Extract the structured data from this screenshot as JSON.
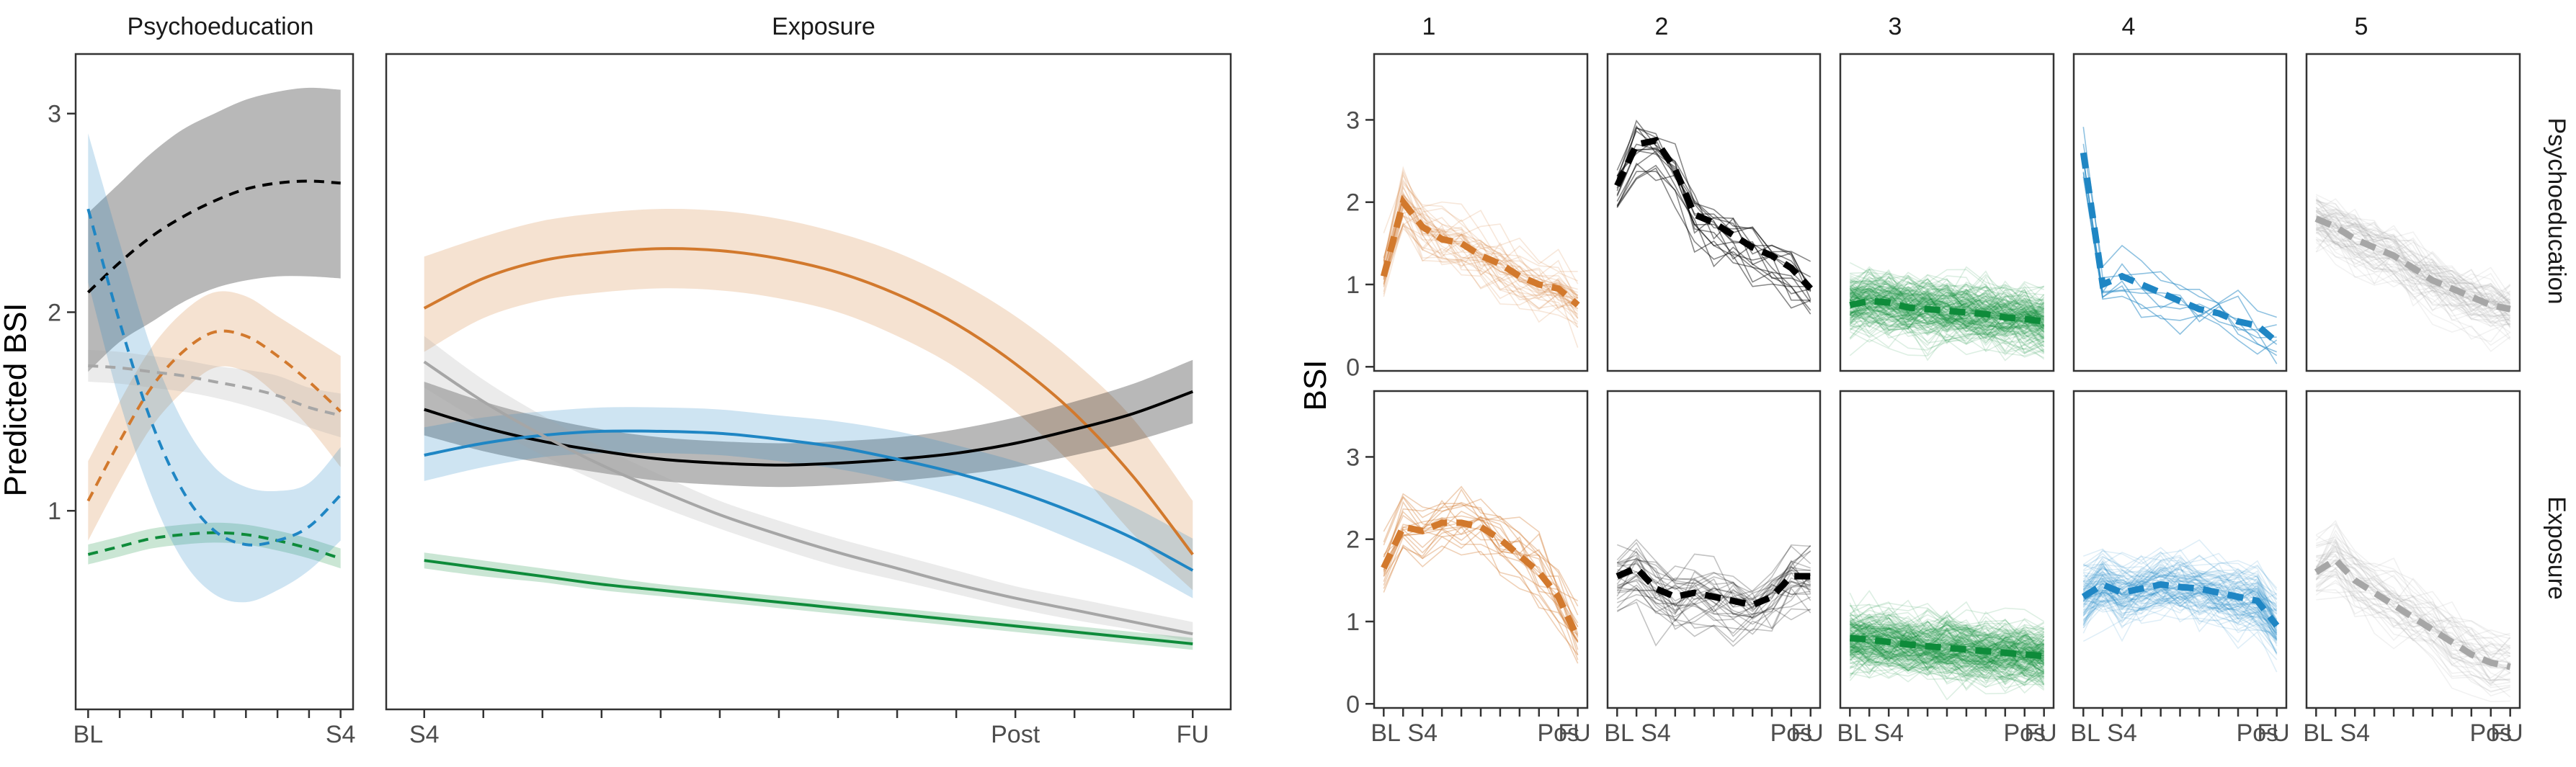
{
  "colors": {
    "class1": "#D2792D",
    "class2": "#000000",
    "class3": "#0E8B3A",
    "class4": "#1F86C4",
    "class5": "#A6A6A6"
  },
  "chart_data": [
    {
      "type": "line",
      "title": "",
      "ylabel": "Predicted BSI",
      "ylim": [
        0.0,
        3.3
      ],
      "yticks": [
        1,
        2,
        3
      ],
      "grid": false,
      "legend": "none",
      "panels": [
        {
          "name": "Psychoeducation",
          "xlim": [
            0,
            8
          ],
          "xticks": [
            0,
            1,
            2,
            3,
            4,
            5,
            6,
            7,
            8
          ],
          "xtick_labels": [
            "BL",
            "",
            "",
            "",
            "",
            "",
            "",
            "",
            "S4"
          ],
          "line_style": "dashed",
          "series": [
            {
              "class": "class1",
              "x": [
                0,
                1,
                2,
                3,
                4,
                5,
                6,
                7,
                8
              ],
              "y": [
                1.05,
                1.35,
                1.62,
                1.8,
                1.9,
                1.88,
                1.78,
                1.65,
                1.5
              ],
              "lower": [
                0.85,
                1.15,
                1.42,
                1.6,
                1.72,
                1.7,
                1.58,
                1.42,
                1.22
              ],
              "upper": [
                1.25,
                1.55,
                1.82,
                2.0,
                2.1,
                2.08,
                1.98,
                1.88,
                1.78
              ]
            },
            {
              "class": "class2",
              "x": [
                0,
                1,
                2,
                3,
                4,
                5,
                6,
                7,
                8
              ],
              "y": [
                2.1,
                2.25,
                2.38,
                2.48,
                2.56,
                2.62,
                2.65,
                2.66,
                2.65
              ],
              "lower": [
                1.7,
                1.85,
                1.95,
                2.05,
                2.12,
                2.16,
                2.18,
                2.18,
                2.17
              ],
              "upper": [
                2.5,
                2.65,
                2.8,
                2.92,
                3.0,
                3.07,
                3.11,
                3.13,
                3.12
              ]
            },
            {
              "class": "class3",
              "x": [
                0,
                1,
                2,
                3,
                4,
                5,
                6,
                7,
                8
              ],
              "y": [
                0.78,
                0.82,
                0.86,
                0.88,
                0.89,
                0.88,
                0.85,
                0.81,
                0.76
              ],
              "lower": [
                0.73,
                0.77,
                0.81,
                0.83,
                0.84,
                0.83,
                0.8,
                0.76,
                0.71
              ],
              "upper": [
                0.83,
                0.87,
                0.91,
                0.93,
                0.94,
                0.93,
                0.9,
                0.86,
                0.81
              ]
            },
            {
              "class": "class4",
              "x": [
                0,
                1,
                2,
                3,
                4,
                5,
                6,
                7,
                8
              ],
              "y": [
                2.52,
                1.95,
                1.45,
                1.1,
                0.9,
                0.83,
                0.85,
                0.92,
                1.08
              ],
              "lower": [
                2.15,
                1.55,
                1.08,
                0.75,
                0.58,
                0.54,
                0.6,
                0.7,
                0.85
              ],
              "upper": [
                2.9,
                2.35,
                1.82,
                1.45,
                1.22,
                1.12,
                1.1,
                1.14,
                1.32
              ]
            },
            {
              "class": "class5",
              "x": [
                0,
                1,
                2,
                3,
                4,
                5,
                6,
                7,
                8
              ],
              "y": [
                1.73,
                1.72,
                1.7,
                1.68,
                1.65,
                1.62,
                1.58,
                1.52,
                1.48
              ],
              "lower": [
                1.65,
                1.64,
                1.62,
                1.6,
                1.57,
                1.53,
                1.48,
                1.42,
                1.37
              ],
              "upper": [
                1.81,
                1.8,
                1.78,
                1.76,
                1.73,
                1.71,
                1.68,
                1.62,
                1.59
              ]
            }
          ]
        },
        {
          "name": "Exposure",
          "xlim": [
            0,
            13
          ],
          "xticks": [
            0,
            1,
            2,
            3,
            4,
            5,
            6,
            7,
            8,
            9,
            10,
            11,
            12,
            13
          ],
          "xtick_labels": [
            "S4",
            "",
            "",
            "",
            "",
            "",
            "",
            "",
            "",
            "",
            "Post",
            "",
            "",
            "FU"
          ],
          "line_style": "solid",
          "series": [
            {
              "class": "class1",
              "x": [
                0,
                1,
                2,
                3,
                4,
                5,
                6,
                7,
                8,
                9,
                10,
                11,
                12,
                13
              ],
              "y": [
                2.02,
                2.17,
                2.26,
                2.3,
                2.32,
                2.31,
                2.27,
                2.2,
                2.09,
                1.94,
                1.74,
                1.49,
                1.17,
                0.78
              ],
              "lower": [
                1.8,
                1.97,
                2.06,
                2.1,
                2.12,
                2.11,
                2.07,
                2.0,
                1.88,
                1.72,
                1.5,
                1.22,
                0.88,
                0.6
              ],
              "upper": [
                2.28,
                2.38,
                2.46,
                2.5,
                2.52,
                2.51,
                2.47,
                2.4,
                2.3,
                2.16,
                1.98,
                1.75,
                1.46,
                1.05
              ]
            },
            {
              "class": "class2",
              "x": [
                0,
                1,
                2,
                3,
                4,
                5,
                6,
                7,
                8,
                9,
                10,
                11,
                12,
                13
              ],
              "y": [
                1.51,
                1.42,
                1.35,
                1.3,
                1.26,
                1.24,
                1.23,
                1.24,
                1.26,
                1.29,
                1.34,
                1.41,
                1.49,
                1.6
              ],
              "lower": [
                1.38,
                1.3,
                1.24,
                1.19,
                1.15,
                1.13,
                1.12,
                1.13,
                1.15,
                1.18,
                1.22,
                1.28,
                1.35,
                1.44
              ],
              "upper": [
                1.65,
                1.55,
                1.47,
                1.41,
                1.37,
                1.35,
                1.34,
                1.35,
                1.37,
                1.41,
                1.47,
                1.55,
                1.64,
                1.76
              ]
            },
            {
              "class": "class3",
              "x": [
                0,
                1,
                2,
                3,
                4,
                5,
                6,
                7,
                8,
                9,
                10,
                11,
                12,
                13
              ],
              "y": [
                0.75,
                0.71,
                0.67,
                0.63,
                0.6,
                0.57,
                0.54,
                0.51,
                0.48,
                0.45,
                0.42,
                0.39,
                0.36,
                0.33
              ],
              "lower": [
                0.71,
                0.67,
                0.64,
                0.6,
                0.57,
                0.54,
                0.51,
                0.48,
                0.45,
                0.42,
                0.39,
                0.36,
                0.33,
                0.3
              ],
              "upper": [
                0.79,
                0.75,
                0.71,
                0.67,
                0.63,
                0.6,
                0.57,
                0.54,
                0.51,
                0.48,
                0.45,
                0.42,
                0.39,
                0.36
              ]
            },
            {
              "class": "class4",
              "x": [
                0,
                1,
                2,
                3,
                4,
                5,
                6,
                7,
                8,
                9,
                10,
                11,
                12,
                13
              ],
              "y": [
                1.28,
                1.34,
                1.38,
                1.4,
                1.4,
                1.39,
                1.36,
                1.32,
                1.26,
                1.19,
                1.1,
                0.99,
                0.86,
                0.7
              ],
              "lower": [
                1.15,
                1.22,
                1.27,
                1.29,
                1.29,
                1.28,
                1.25,
                1.21,
                1.15,
                1.07,
                0.97,
                0.85,
                0.72,
                0.56
              ],
              "upper": [
                1.42,
                1.47,
                1.5,
                1.52,
                1.52,
                1.51,
                1.48,
                1.45,
                1.4,
                1.33,
                1.25,
                1.15,
                1.02,
                0.86
              ]
            },
            {
              "class": "class5",
              "x": [
                0,
                1,
                2,
                3,
                4,
                5,
                6,
                7,
                8,
                9,
                10,
                11,
                12,
                13
              ],
              "y": [
                1.75,
                1.55,
                1.38,
                1.23,
                1.1,
                0.98,
                0.88,
                0.79,
                0.71,
                0.63,
                0.56,
                0.5,
                0.44,
                0.38
              ],
              "lower": [
                1.62,
                1.44,
                1.28,
                1.14,
                1.02,
                0.91,
                0.81,
                0.72,
                0.65,
                0.58,
                0.51,
                0.45,
                0.4,
                0.34
              ],
              "upper": [
                1.88,
                1.66,
                1.48,
                1.32,
                1.18,
                1.05,
                0.95,
                0.86,
                0.78,
                0.7,
                0.62,
                0.56,
                0.5,
                0.44
              ]
            }
          ]
        }
      ]
    },
    {
      "type": "line",
      "title": "",
      "ylabel": "BSI",
      "ylim": [
        -0.05,
        3.8
      ],
      "yticks": [
        0,
        1,
        2,
        3
      ],
      "xtick_labels": [
        "BL",
        "",
        "S4",
        "",
        "",
        "",
        "",
        "",
        "",
        "Pos",
        "FU"
      ],
      "columns": [
        "1",
        "2",
        "3",
        "4",
        "5"
      ],
      "rows": [
        "Psychoeducation",
        "Exposure"
      ],
      "grid": false,
      "legend": "none",
      "mean_style": "thick dashed",
      "x": [
        0,
        1,
        2,
        3,
        4,
        5,
        6,
        7,
        8,
        9,
        10
      ],
      "panels": [
        {
          "row": "Psychoeducation",
          "column": "1",
          "class": "class1",
          "n_individuals": 40,
          "mean": [
            1.1,
            2.0,
            1.7,
            1.55,
            1.5,
            1.35,
            1.25,
            1.1,
            1.0,
            0.95,
            0.75
          ]
        },
        {
          "row": "Psychoeducation",
          "column": "2",
          "class": "class2",
          "n_individuals": 15,
          "mean": [
            2.2,
            2.7,
            2.75,
            2.4,
            1.85,
            1.75,
            1.6,
            1.45,
            1.35,
            1.2,
            0.95
          ]
        },
        {
          "row": "Psychoeducation",
          "column": "3",
          "class": "class3",
          "n_individuals": 180,
          "mean": [
            0.75,
            0.8,
            0.78,
            0.72,
            0.7,
            0.68,
            0.66,
            0.64,
            0.6,
            0.58,
            0.55
          ]
        },
        {
          "row": "Psychoeducation",
          "column": "4",
          "class": "class4",
          "n_individuals": 8,
          "mean": [
            2.6,
            1.0,
            1.1,
            1.0,
            0.9,
            0.8,
            0.7,
            0.65,
            0.55,
            0.5,
            0.3
          ]
        },
        {
          "row": "Psychoeducation",
          "column": "5",
          "class": "class5",
          "n_individuals": 70,
          "mean": [
            1.8,
            1.7,
            1.55,
            1.45,
            1.35,
            1.2,
            1.05,
            0.95,
            0.85,
            0.75,
            0.7
          ]
        },
        {
          "row": "Exposure",
          "column": "1",
          "class": "class1",
          "n_individuals": 20,
          "mean": [
            1.65,
            2.15,
            2.1,
            2.2,
            2.2,
            2.15,
            2.0,
            1.8,
            1.6,
            1.3,
            0.8
          ]
        },
        {
          "row": "Exposure",
          "column": "2",
          "class": "class2",
          "n_individuals": 30,
          "mean": [
            1.55,
            1.65,
            1.4,
            1.3,
            1.35,
            1.3,
            1.25,
            1.2,
            1.3,
            1.55,
            1.55
          ]
        },
        {
          "row": "Exposure",
          "column": "3",
          "class": "class3",
          "n_individuals": 200,
          "mean": [
            0.8,
            0.78,
            0.75,
            0.72,
            0.7,
            0.68,
            0.66,
            0.64,
            0.62,
            0.6,
            0.58
          ]
        },
        {
          "row": "Exposure",
          "column": "4",
          "class": "class4",
          "n_individuals": 100,
          "mean": [
            1.3,
            1.45,
            1.35,
            1.4,
            1.45,
            1.42,
            1.4,
            1.35,
            1.3,
            1.25,
            0.95
          ]
        },
        {
          "row": "Exposure",
          "column": "5",
          "class": "class5",
          "n_individuals": 45,
          "mean": [
            1.6,
            1.75,
            1.5,
            1.35,
            1.2,
            1.05,
            0.9,
            0.75,
            0.6,
            0.5,
            0.45
          ]
        }
      ]
    }
  ]
}
